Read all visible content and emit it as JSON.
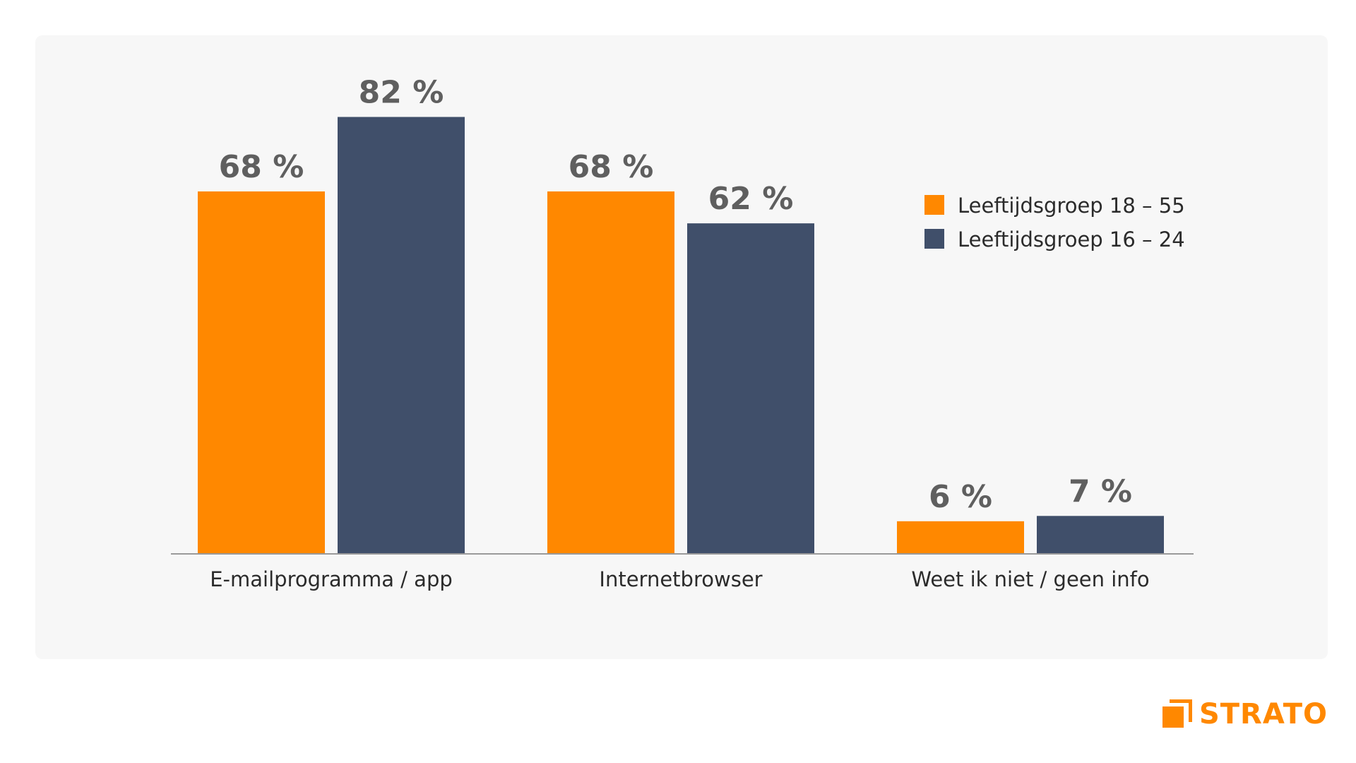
{
  "chart_data": {
    "type": "bar",
    "categories": [
      "E-mailprogramma / app",
      "Internetbrowser",
      "Weet ik niet / geen info"
    ],
    "series": [
      {
        "name": "Leeftijdsgroep 18 – 55",
        "values": [
          68,
          68,
          6
        ],
        "labels": [
          "68 %",
          "68 %",
          "6 %"
        ],
        "color": "#ff8800"
      },
      {
        "name": "Leeftijdsgroep 16 – 24",
        "values": [
          82,
          62,
          7
        ],
        "labels": [
          "82 %",
          "62 %",
          "7 %"
        ],
        "color": "#404f6a"
      }
    ],
    "ylim": [
      0,
      100
    ],
    "grid": false,
    "legend": "top-right",
    "title": "",
    "xlabel": "",
    "ylabel": ""
  },
  "brand": {
    "name": "STRATO",
    "color": "#ff8800",
    "icon": "strato-logo-icon"
  },
  "colors": {
    "background": "#f7f7f7",
    "axis": "#9a9a9a",
    "label": "#5f5f5f"
  }
}
